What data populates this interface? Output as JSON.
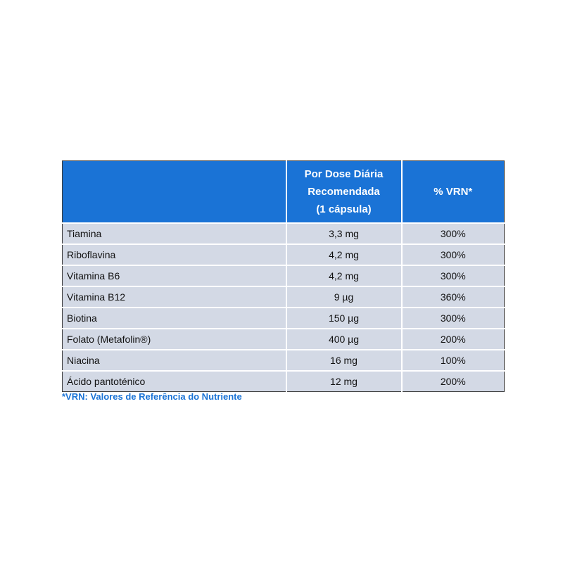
{
  "table": {
    "headers": {
      "name": "",
      "dose_lines": [
        "Por Dose Diária",
        "Recomendada",
        "(1 cápsula)"
      ],
      "vrn": "% VRN*"
    },
    "rows": [
      {
        "name": "Tiamina",
        "dose": "3,3 mg",
        "vrn": "300%"
      },
      {
        "name": "Riboflavina",
        "dose": "4,2 mg",
        "vrn": "300%"
      },
      {
        "name": "Vitamina B6",
        "dose": "4,2 mg",
        "vrn": "300%"
      },
      {
        "name": "Vitamina B12",
        "dose": "9 µg",
        "vrn": "360%"
      },
      {
        "name": "Biotina",
        "dose": "150 µg",
        "vrn": "300%"
      },
      {
        "name": "Folato (Metafolin®)",
        "dose": "400 µg",
        "vrn": "200%"
      },
      {
        "name": "Niacina",
        "dose": "16 mg",
        "vrn": "100%"
      },
      {
        "name": "Ácido pantoténico",
        "dose": "12 mg",
        "vrn": "200%"
      }
    ]
  },
  "footnote": "*VRN: Valores de Referência do Nutriente",
  "colors": {
    "header_bg": "#1a73d6",
    "row_bg": "#d3d9e5",
    "footnote": "#1a73d6"
  }
}
